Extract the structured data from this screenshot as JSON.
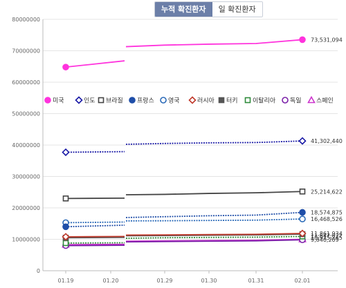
{
  "tabs": {
    "cumulative": "누적 확진환자",
    "daily": "일 확진환자"
  },
  "chart_data": {
    "type": "line",
    "categories": [
      "01.19",
      "01.20",
      "01.29",
      "01.30",
      "01.31",
      "02.01"
    ],
    "ylim": [
      0,
      80000000
    ],
    "yticks": [
      "0",
      "10000000",
      "20000000",
      "30000000",
      "40000000",
      "50000000",
      "60000000",
      "70000000",
      "80000000"
    ],
    "legend_position": "middle",
    "series": [
      {
        "name": "미국",
        "color": "#ff33dd",
        "marker": "circle-filled",
        "line": "solid",
        "values": [
          64800000,
          66800000,
          71800000,
          72100000,
          72300000,
          73531094
        ],
        "end_label": "73,531,094"
      },
      {
        "name": "인도",
        "color": "#1a1aa6",
        "marker": "diamond-open",
        "line": "dotted",
        "values": [
          37700000,
          37900000,
          40500000,
          40700000,
          40800000,
          41302440
        ],
        "end_label": "41,302,440"
      },
      {
        "name": "브라질",
        "color": "#444444",
        "marker": "square-open",
        "line": "solid",
        "values": [
          23000000,
          23100000,
          24300000,
          24600000,
          24800000,
          25214622
        ],
        "end_label": "25,214,622"
      },
      {
        "name": "프랑스",
        "color": "#1f4ea8",
        "marker": "circle-filled",
        "line": "dotted",
        "values": [
          14000000,
          14500000,
          17200000,
          17500000,
          17700000,
          18574875
        ],
        "end_label": "18,574,875"
      },
      {
        "name": "영국",
        "color": "#2a6ab8",
        "marker": "circle-open",
        "line": "dotted",
        "values": [
          15300000,
          15500000,
          15900000,
          16000000,
          16100000,
          16468526
        ],
        "end_label": "16,468,526"
      },
      {
        "name": "러시아",
        "color": "#c0392b",
        "marker": "diamond-open",
        "line": "solid",
        "values": [
          10800000,
          10900000,
          11400000,
          11500000,
          11600000,
          11861934
        ],
        "end_label": "11,861,934"
      },
      {
        "name": "터키",
        "color": "#555555",
        "marker": "square-filled",
        "line": "solid",
        "values": [
          10500000,
          10600000,
          11200000,
          11300000,
          11400000,
          11647022
        ],
        "end_label": "11,647,022"
      },
      {
        "name": "이탈리아",
        "color": "#2e8b3a",
        "marker": "square-open",
        "line": "dotted",
        "values": [
          8800000,
          8900000,
          10500000,
          10600000,
          10700000,
          10915245
        ],
        "end_label": "10,915,245"
      },
      {
        "name": "독일",
        "color": "#7a1fa8",
        "marker": "circle-open",
        "line": "solid",
        "values": [
          8000000,
          8100000,
          9300000,
          9400000,
          9500000,
          9840209
        ],
        "end_label": "9,840,209"
      },
      {
        "name": "스페인",
        "color": "#cc33cc",
        "marker": "triangle-open",
        "line": "solid",
        "values": [
          8300000,
          8400000,
          9500000,
          9600000,
          9700000,
          10000000
        ],
        "end_label": ""
      }
    ]
  }
}
